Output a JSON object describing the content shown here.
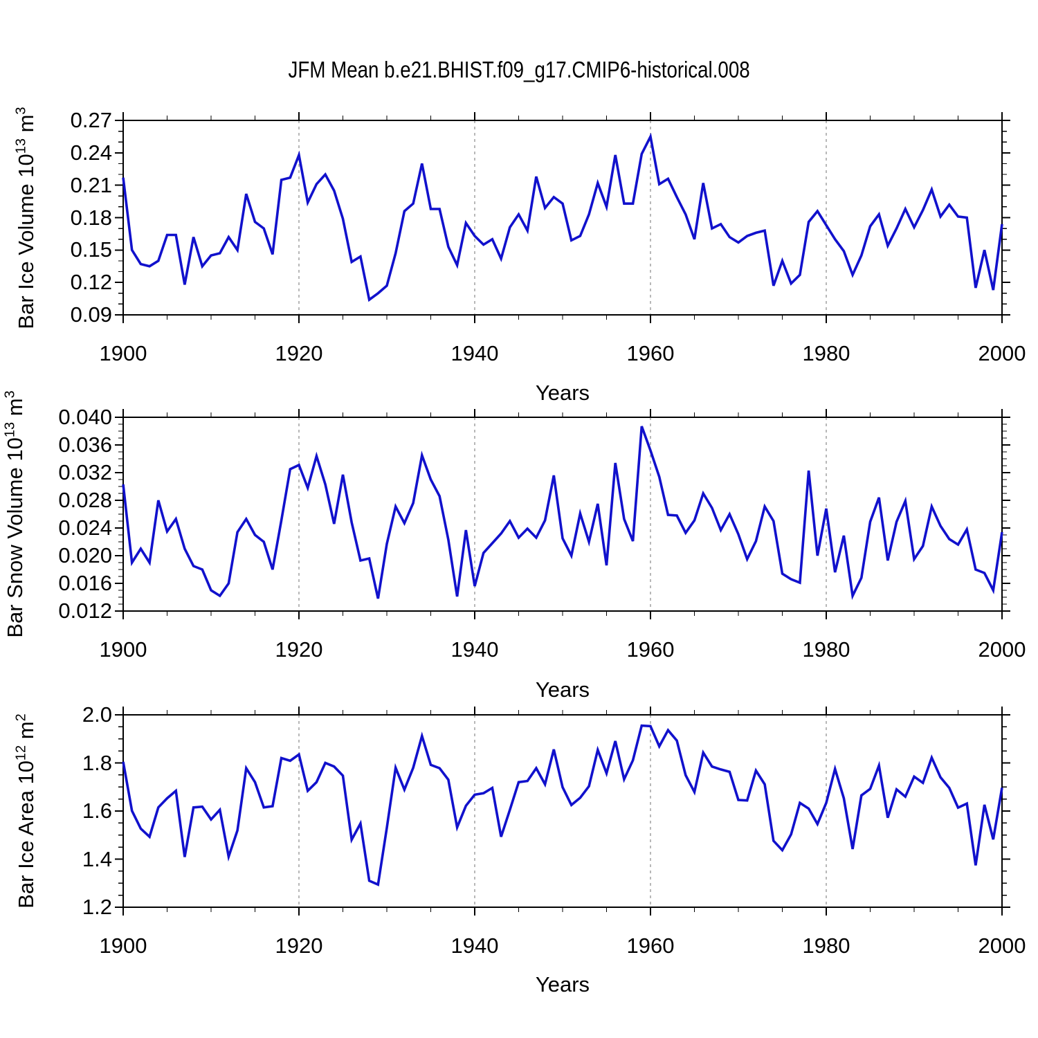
{
  "title": "JFM Mean b.e21.BHIST.f09_g17.CMIP6-historical.008",
  "colors": {
    "line": "#1111cc",
    "axis": "#000000",
    "gridline": "#999999",
    "background": "#ffffff"
  },
  "panels": [
    {
      "ylabel_main": "Bar Ice Volume 10",
      "ylabel_exp": "13",
      "ylabel_unit": " m",
      "ylabel_unit_exp": "3",
      "xlabel": "Years"
    },
    {
      "ylabel_main": "Bar Snow Volume 10",
      "ylabel_exp": "13",
      "ylabel_unit": " m",
      "ylabel_unit_exp": "3",
      "xlabel": "Years"
    },
    {
      "ylabel_main": "Bar Ice Area 10",
      "ylabel_exp": "12",
      "ylabel_unit": " m",
      "ylabel_unit_exp": "2",
      "xlabel": "Years"
    }
  ],
  "chart_data": [
    {
      "type": "line",
      "title": "JFM Mean b.e21.BHIST.f09_g17.CMIP6-historical.008",
      "ylabel": "Bar Ice Volume 10^13 m^3",
      "xlabel": "Years",
      "x_range": [
        1900,
        2000
      ],
      "x_step": 1,
      "ylim": [
        0.09,
        0.27
      ],
      "y_major_step": 0.03,
      "y_minor_step": 0.01,
      "x_major_ticks": [
        1900,
        1920,
        1940,
        1960,
        1980,
        2000
      ],
      "x_tick_labels": [
        "1900",
        "1920",
        "1940",
        "1960",
        "1980",
        "2000"
      ],
      "x_minor_step": 5,
      "dashed_gridlines_x": [
        1920,
        1940,
        1960,
        1980
      ],
      "y_tick_labels": [
        "0.27",
        "0.24",
        "0.21",
        "0.18",
        "0.15",
        "0.12",
        "0.09"
      ],
      "legend": "none",
      "values": [
        0.217,
        0.15,
        0.137,
        0.135,
        0.14,
        0.164,
        0.164,
        0.118,
        0.162,
        0.135,
        0.145,
        0.147,
        0.162,
        0.15,
        0.202,
        0.176,
        0.17,
        0.146,
        0.215,
        0.217,
        0.238,
        0.194,
        0.211,
        0.22,
        0.205,
        0.179,
        0.139,
        0.144,
        0.104,
        0.11,
        0.117,
        0.147,
        0.186,
        0.193,
        0.23,
        0.188,
        0.188,
        0.153,
        0.136,
        0.175,
        0.163,
        0.155,
        0.16,
        0.142,
        0.171,
        0.183,
        0.168,
        0.218,
        0.189,
        0.199,
        0.193,
        0.159,
        0.163,
        0.183,
        0.212,
        0.19,
        0.238,
        0.193,
        0.193,
        0.239,
        0.255,
        0.211,
        0.216,
        0.199,
        0.183,
        0.16,
        0.212,
        0.17,
        0.174,
        0.162,
        0.157,
        0.163,
        0.166,
        0.168,
        0.117,
        0.14,
        0.119,
        0.127,
        0.176,
        0.186,
        0.173,
        0.16,
        0.149,
        0.127,
        0.145,
        0.172,
        0.183,
        0.154,
        0.17,
        0.188,
        0.171,
        0.187,
        0.206,
        0.181,
        0.192,
        0.181,
        0.18,
        0.115,
        0.15,
        0.113,
        0.174
      ]
    },
    {
      "type": "line",
      "ylabel": "Bar Snow Volume 10^13 m^3",
      "xlabel": "Years",
      "x_range": [
        1900,
        2000
      ],
      "x_step": 1,
      "ylim": [
        0.012,
        0.04
      ],
      "y_major_step": 0.004,
      "y_minor_step": 0.001,
      "x_major_ticks": [
        1900,
        1920,
        1940,
        1960,
        1980,
        2000
      ],
      "x_tick_labels": [
        "1900",
        "1920",
        "1940",
        "1960",
        "1980",
        "2000"
      ],
      "x_minor_step": 5,
      "dashed_gridlines_x": [
        1920,
        1940,
        1960,
        1980
      ],
      "y_tick_labels": [
        "0.040",
        "0.036",
        "0.032",
        "0.028",
        "0.024",
        "0.020",
        "0.016",
        "0.012"
      ],
      "legend": "none",
      "values": [
        0.0303,
        0.019,
        0.021,
        0.019,
        0.028,
        0.0235,
        0.0253,
        0.021,
        0.0185,
        0.018,
        0.015,
        0.0142,
        0.016,
        0.0234,
        0.0253,
        0.023,
        0.022,
        0.018,
        0.0251,
        0.0325,
        0.0331,
        0.0298,
        0.0344,
        0.0303,
        0.0246,
        0.0317,
        0.0248,
        0.0193,
        0.0196,
        0.0138,
        0.0217,
        0.0271,
        0.0247,
        0.0276,
        0.0345,
        0.031,
        0.0286,
        0.0223,
        0.0141,
        0.0237,
        0.0156,
        0.0204,
        0.0218,
        0.0232,
        0.025,
        0.0226,
        0.0239,
        0.0226,
        0.0251,
        0.0316,
        0.0225,
        0.02,
        0.0261,
        0.022,
        0.0275,
        0.0186,
        0.0334,
        0.0253,
        0.0221,
        0.0387,
        0.0352,
        0.0314,
        0.0259,
        0.0258,
        0.0233,
        0.0251,
        0.029,
        0.0269,
        0.0237,
        0.026,
        0.0231,
        0.0195,
        0.0221,
        0.0271,
        0.025,
        0.0174,
        0.0166,
        0.0161,
        0.0323,
        0.02,
        0.0268,
        0.0176,
        0.0229,
        0.0142,
        0.0168,
        0.0249,
        0.0284,
        0.0193,
        0.0249,
        0.0279,
        0.0195,
        0.0214,
        0.0271,
        0.0243,
        0.0224,
        0.0216,
        0.0238,
        0.018,
        0.0175,
        0.015,
        0.0234
      ]
    },
    {
      "type": "line",
      "ylabel": "Bar Ice Area 10^12 m^2",
      "xlabel": "Years",
      "x_range": [
        1900,
        2000
      ],
      "x_step": 1,
      "ylim": [
        1.2,
        2.0
      ],
      "y_major_step": 0.2,
      "y_minor_step": 0.05,
      "x_major_ticks": [
        1900,
        1920,
        1940,
        1960,
        1980,
        2000
      ],
      "x_tick_labels": [
        "1900",
        "1920",
        "1940",
        "1960",
        "1980",
        "2000"
      ],
      "x_minor_step": 5,
      "dashed_gridlines_x": [
        1920,
        1940,
        1960,
        1980
      ],
      "y_tick_labels": [
        "2.0",
        "1.8",
        "1.6",
        "1.4",
        "1.2"
      ],
      "legend": "none",
      "values": [
        1.805,
        1.601,
        1.527,
        1.493,
        1.615,
        1.653,
        1.684,
        1.409,
        1.615,
        1.618,
        1.565,
        1.605,
        1.41,
        1.519,
        1.778,
        1.72,
        1.615,
        1.62,
        1.82,
        1.809,
        1.835,
        1.684,
        1.72,
        1.8,
        1.785,
        1.747,
        1.481,
        1.548,
        1.31,
        1.294,
        1.53,
        1.78,
        1.689,
        1.78,
        1.912,
        1.792,
        1.778,
        1.73,
        1.532,
        1.622,
        1.668,
        1.674,
        1.696,
        1.493,
        1.605,
        1.72,
        1.725,
        1.778,
        1.711,
        1.856,
        1.699,
        1.625,
        1.655,
        1.703,
        1.854,
        1.757,
        1.891,
        1.732,
        1.811,
        1.955,
        1.953,
        1.869,
        1.936,
        1.893,
        1.749,
        1.679,
        1.843,
        1.785,
        1.773,
        1.763,
        1.646,
        1.644,
        1.768,
        1.711,
        1.476,
        1.437,
        1.503,
        1.634,
        1.61,
        1.546,
        1.634,
        1.775,
        1.653,
        1.442,
        1.665,
        1.692,
        1.789,
        1.572,
        1.69,
        1.66,
        1.743,
        1.717,
        1.822,
        1.74,
        1.696,
        1.614,
        1.631,
        1.374,
        1.626,
        1.482,
        1.697
      ]
    }
  ]
}
